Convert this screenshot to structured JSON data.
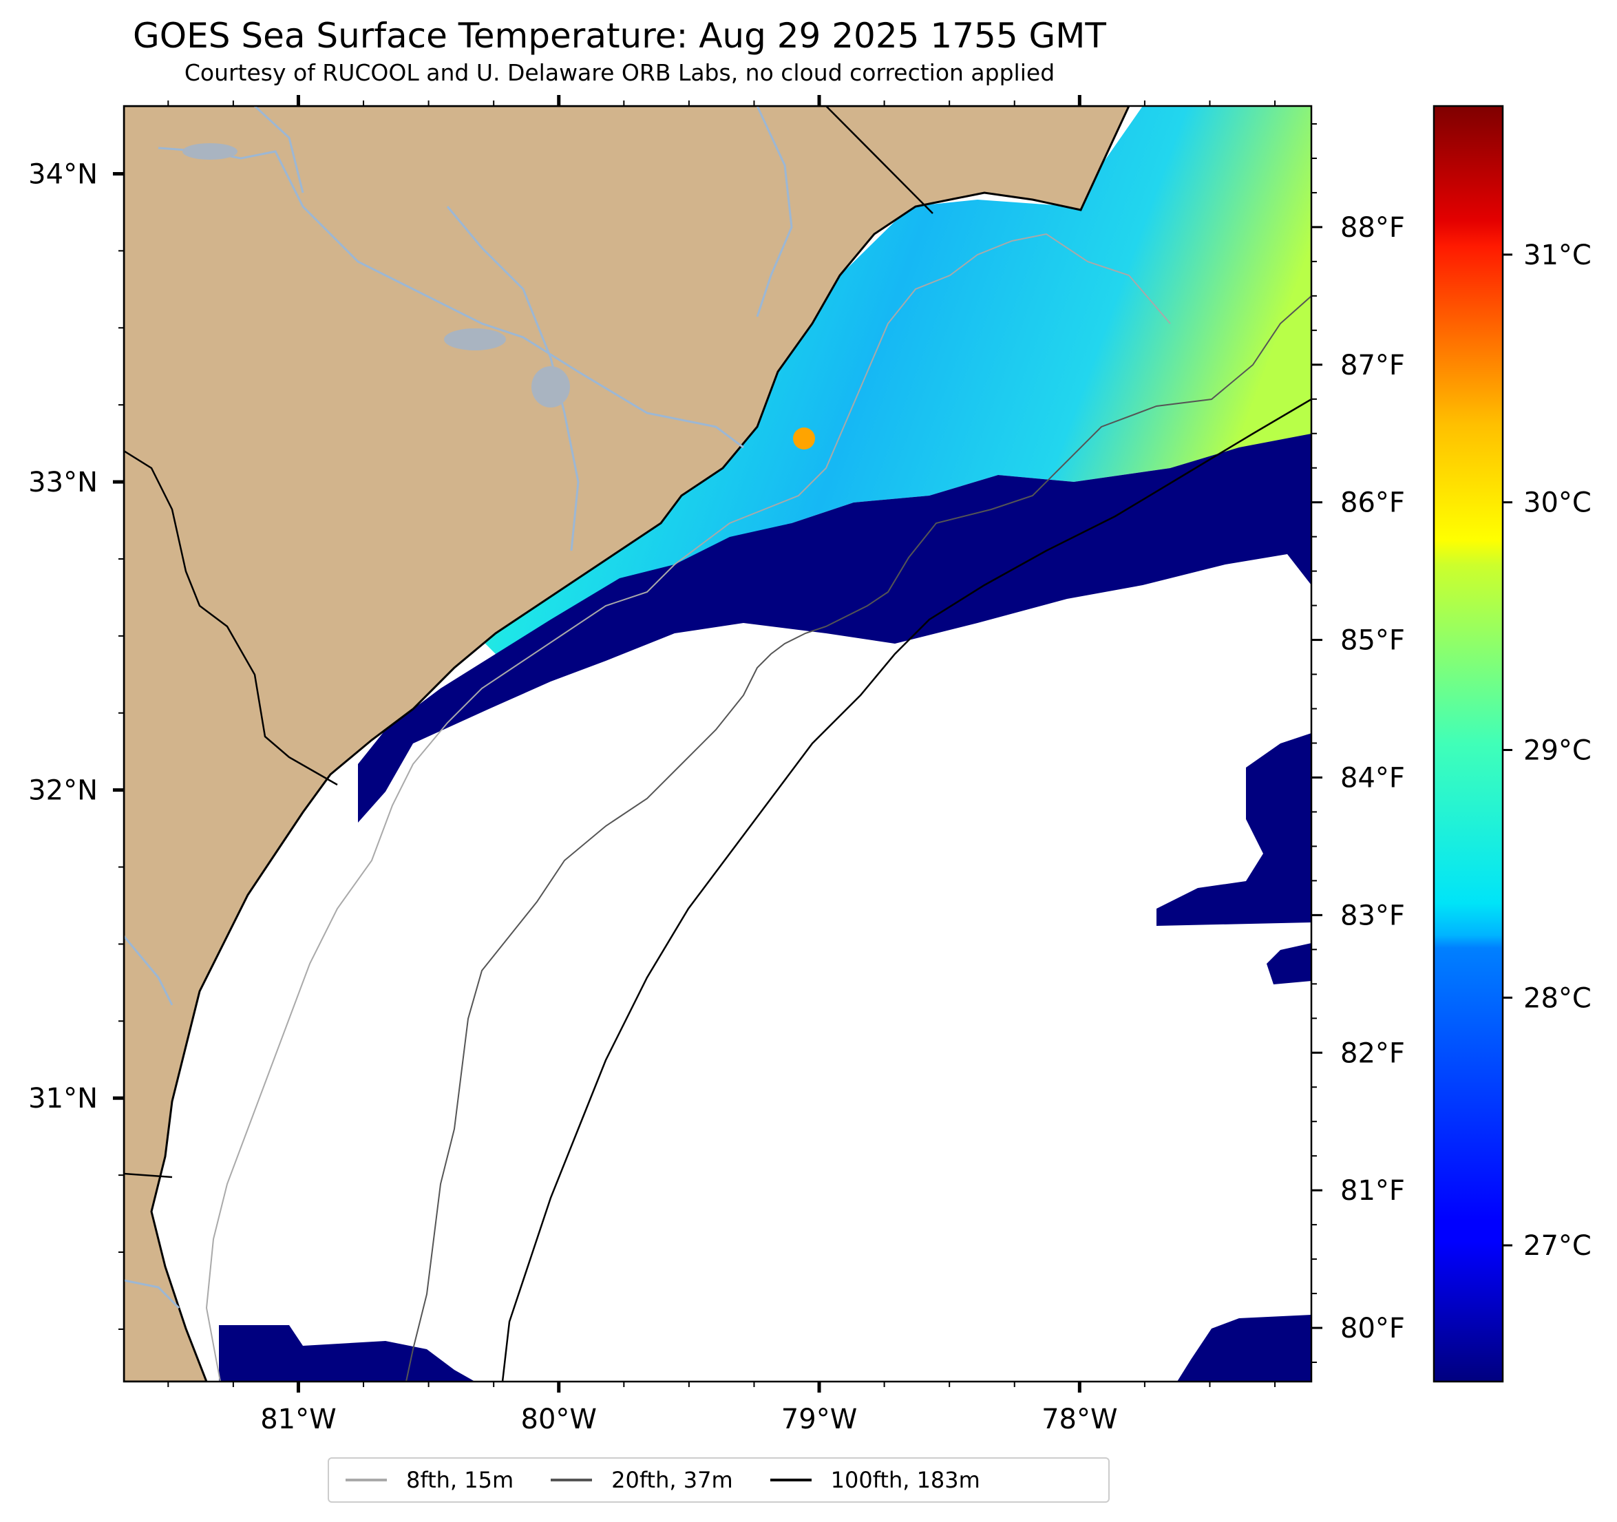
{
  "title": "GOES Sea Surface Temperature: Aug 29 2025 1755 GMT",
  "subtitle": "Courtesy of RUCOOL and U. Delaware ORB Labs, no cloud correction applied",
  "map": {
    "x_ticks": [
      {
        "value": -81,
        "label": "81°W"
      },
      {
        "value": -80,
        "label": "80°W"
      },
      {
        "value": -79,
        "label": "79°W"
      },
      {
        "value": -78,
        "label": "78°W"
      }
    ],
    "y_ticks": [
      {
        "value": 34,
        "label": "34°N"
      },
      {
        "value": 33,
        "label": "33°N"
      },
      {
        "value": 32,
        "label": "32°N"
      },
      {
        "value": 31,
        "label": "31°N"
      }
    ],
    "lon_range": [
      -81.67,
      -77.11
    ],
    "lat_range": [
      30.08,
      34.22
    ],
    "land_color": "#d2b48c",
    "coast_color": "#000000",
    "river_color": "#9cb7d4",
    "cloud_mask_color": "#00007f"
  },
  "fahrenheit_axis": {
    "ticks": [
      {
        "value": 88,
        "label": "88°F"
      },
      {
        "value": 87,
        "label": "87°F"
      },
      {
        "value": 86,
        "label": "86°F"
      },
      {
        "value": 85,
        "label": "85°F"
      },
      {
        "value": 84,
        "label": "84°F"
      },
      {
        "value": 83,
        "label": "83°F"
      },
      {
        "value": 82,
        "label": "82°F"
      },
      {
        "value": 81,
        "label": "81°F"
      },
      {
        "value": 80,
        "label": "80°F"
      }
    ]
  },
  "colorbar": {
    "colormap": "jet",
    "range_c": [
      26.45,
      31.6
    ],
    "ticks": [
      {
        "value": 31,
        "label": "31°C"
      },
      {
        "value": 30,
        "label": "30°C"
      },
      {
        "value": 29,
        "label": "29°C"
      },
      {
        "value": 28,
        "label": "28°C"
      },
      {
        "value": 27,
        "label": "27°C"
      }
    ]
  },
  "legend": [
    {
      "label": "8fth, 15m",
      "color": "#a9a9a9"
    },
    {
      "label": "20fth, 37m",
      "color": "#555555"
    },
    {
      "label": "100fth, 183m",
      "color": "#000000"
    }
  ]
}
